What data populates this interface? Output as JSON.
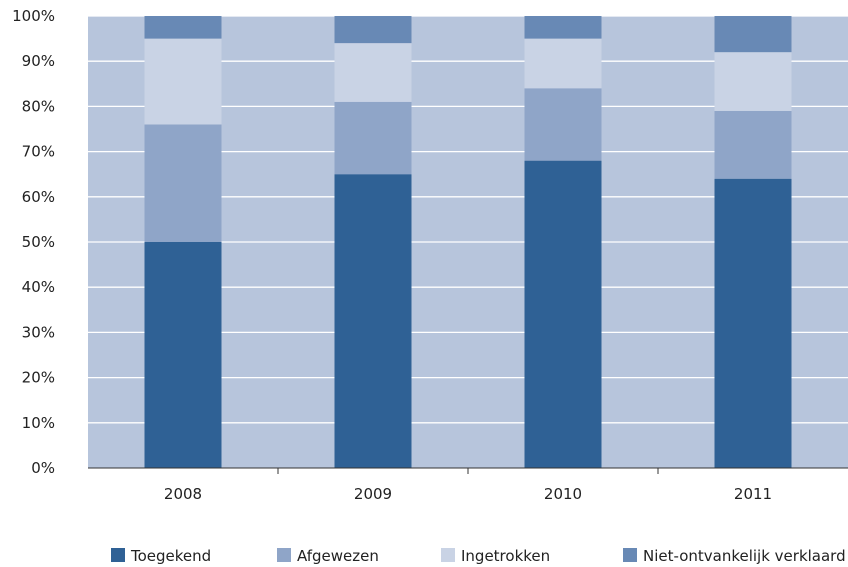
{
  "chart_data": {
    "type": "bar",
    "stacked": true,
    "categories": [
      "2008",
      "2009",
      "2010",
      "2011"
    ],
    "series": [
      {
        "name": "Toegekend",
        "color": "#2f6195",
        "values": [
          50,
          65,
          68,
          64
        ]
      },
      {
        "name": "Afgewezen",
        "color": "#8fa5c8",
        "values": [
          26,
          16,
          16,
          15
        ]
      },
      {
        "name": "Ingetrokken",
        "color": "#c9d3e5",
        "values": [
          19,
          13,
          11,
          13
        ]
      },
      {
        "name": "Niet-ontvankelijk verklaard",
        "color": "#6889b5",
        "values": [
          5,
          6,
          5,
          8
        ]
      }
    ],
    "y_ticks": [
      "0%",
      "10%",
      "20%",
      "30%",
      "40%",
      "50%",
      "60%",
      "70%",
      "80%",
      "90%",
      "100%"
    ],
    "ylim": [
      0,
      100
    ],
    "grid": true,
    "plot_background": "#b7c5dc",
    "gridline_color": "#ffffff",
    "legend_position": "bottom"
  }
}
